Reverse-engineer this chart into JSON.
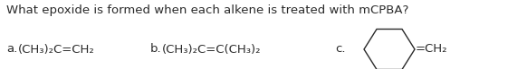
{
  "title": "What epoxide is formed when each alkene is treated with mCPBA?",
  "title_fontsize": 9.5,
  "background_color": "#ffffff",
  "label_a": "a.",
  "formula_a": "(CH₃)₂C=CH₂",
  "label_b": "b.",
  "formula_b": "(CH₃)₂C=C(CH₃)₂",
  "label_c": "c.",
  "formula_c": "=CH₂",
  "text_fontsize": 9.5,
  "text_color": "#2a2a2a",
  "ring_color": "#2a2a2a",
  "ring_linewidth": 1.0
}
